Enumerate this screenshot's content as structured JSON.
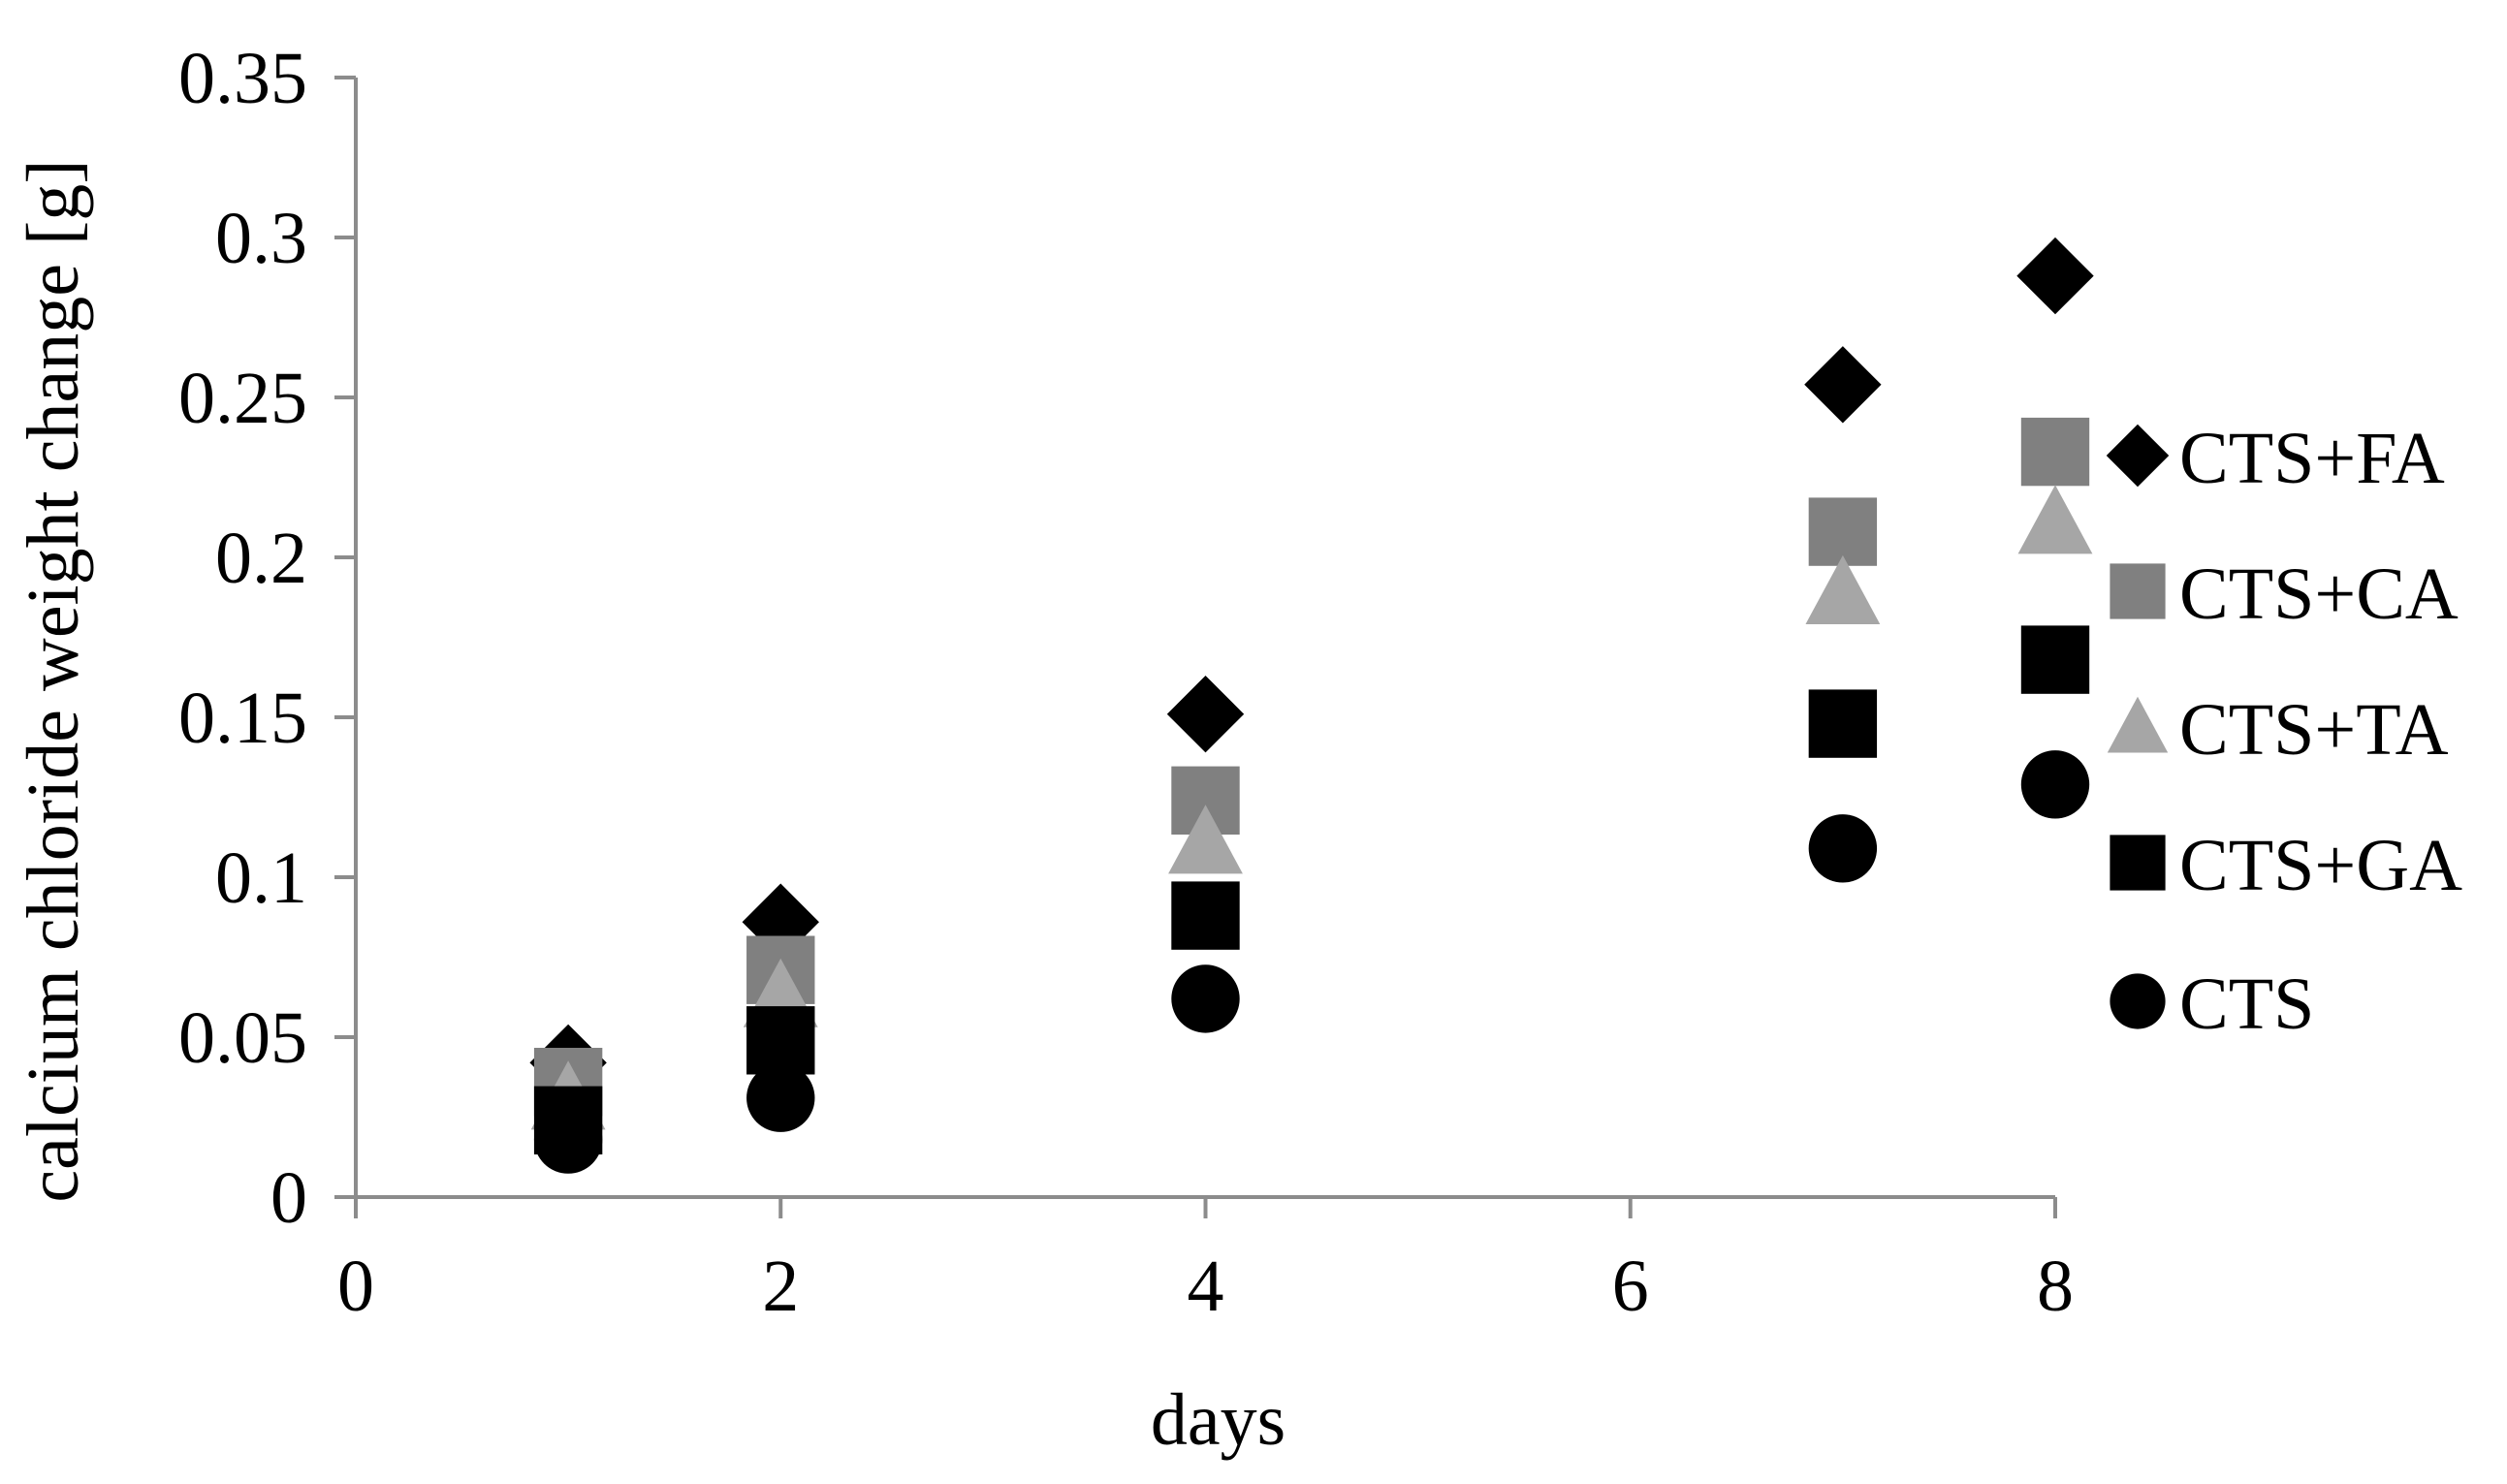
{
  "chart_data": {
    "type": "scatter",
    "title": "",
    "xlabel": "days",
    "ylabel": "calcium chloride weight change [g]",
    "xlim": [
      0,
      8
    ],
    "ylim": [
      0,
      0.35
    ],
    "x_ticks": [
      "0",
      "2",
      "4",
      "6",
      "8"
    ],
    "y_ticks": [
      "0",
      "0.05",
      "0.1",
      "0.15",
      "0.2",
      "0.25",
      "0.3",
      "0.35"
    ],
    "grid": false,
    "legend_position": "right",
    "x": [
      1,
      2,
      4,
      7,
      8
    ],
    "series": [
      {
        "name": "CTS+FA",
        "marker": "diamond",
        "color": "#000000",
        "values": [
          0.042,
          0.086,
          0.151,
          0.254,
          0.288
        ]
      },
      {
        "name": "CTS+CA",
        "marker": "square",
        "color": "#808080",
        "values": [
          0.036,
          0.071,
          0.124,
          0.208,
          0.233
        ]
      },
      {
        "name": "CTS+TA",
        "marker": "triangle",
        "color": "#a6a6a6",
        "values": [
          0.031,
          0.063,
          0.111,
          0.189,
          0.211
        ]
      },
      {
        "name": "CTS+GA",
        "marker": "square",
        "color": "#000000",
        "values": [
          0.024,
          0.049,
          0.088,
          0.148,
          0.168
        ]
      },
      {
        "name": "CTS",
        "marker": "circle",
        "color": "#000000",
        "values": [
          0.018,
          0.031,
          0.062,
          0.109,
          0.129
        ]
      }
    ]
  }
}
